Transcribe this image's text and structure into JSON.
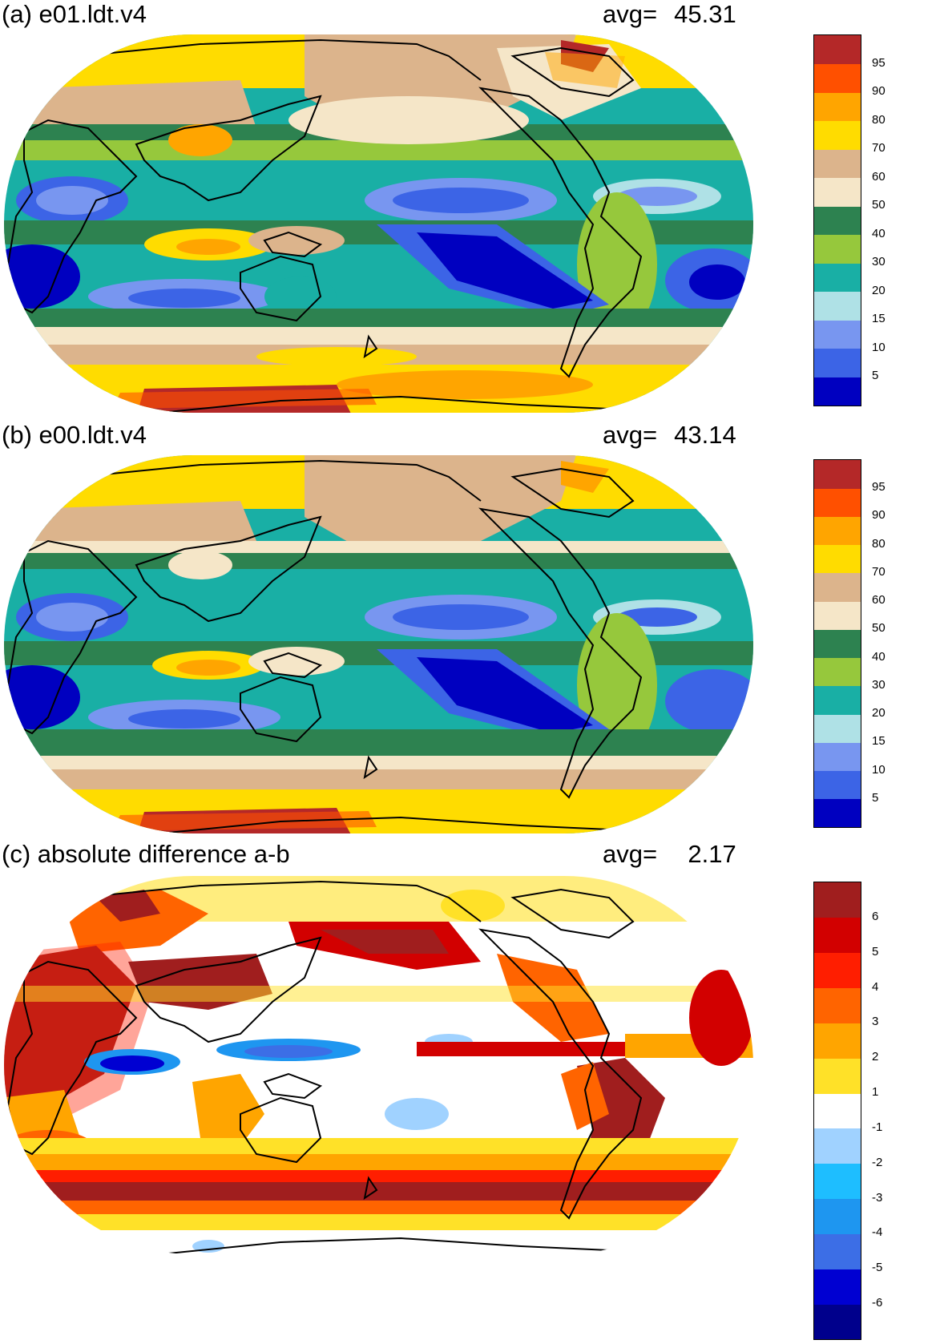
{
  "panels": [
    {
      "title": "(a) e01.ldt.v4",
      "avg_label": "avg=",
      "avg_value": "45.31",
      "colorbar": {
        "colors": [
          "#0000c0",
          "#3c64e6",
          "#7896f0",
          "#afe1e6",
          "#19afa5",
          "#96c83c",
          "#2d8250",
          "#f5e6c8",
          "#dcb48c",
          "#ffdc00",
          "#ffa500",
          "#ff5000",
          "#b42828"
        ],
        "labels": [
          "5",
          "10",
          "15",
          "20",
          "30",
          "40",
          "50",
          "60",
          "70",
          "80",
          "90",
          "95"
        ]
      }
    },
    {
      "title": "(b) e00.ldt.v4",
      "avg_label": "avg=",
      "avg_value": "43.14",
      "colorbar": {
        "colors": [
          "#0000c0",
          "#3c64e6",
          "#7896f0",
          "#afe1e6",
          "#19afa5",
          "#96c83c",
          "#2d8250",
          "#f5e6c8",
          "#dcb48c",
          "#ffdc00",
          "#ffa500",
          "#ff5000",
          "#b42828"
        ],
        "labels": [
          "5",
          "10",
          "15",
          "20",
          "30",
          "40",
          "50",
          "60",
          "70",
          "80",
          "90",
          "95"
        ]
      }
    },
    {
      "title": "(c) absolute difference a-b",
      "avg_label": "avg=",
      "avg_value": "2.17",
      "colorbar": {
        "colors": [
          "#00008c",
          "#0000d2",
          "#3c6ee6",
          "#1e96f0",
          "#1ebeff",
          "#a0d2ff",
          "#ffffff",
          "#ffe128",
          "#ffa500",
          "#ff6400",
          "#ff1e00",
          "#d20000",
          "#a01e1e"
        ],
        "labels": [
          "-6",
          "-5",
          "-4",
          "-3",
          "-2",
          "-1",
          "1",
          "2",
          "3",
          "4",
          "5",
          "6"
        ]
      }
    }
  ]
}
